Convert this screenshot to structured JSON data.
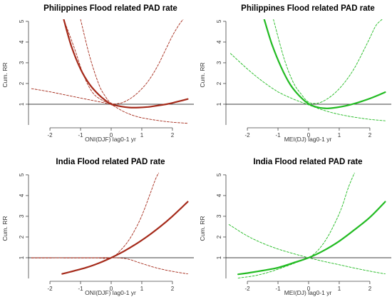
{
  "chart_data": [
    {
      "type": "line",
      "title": "Philippines Flood related PAD rate",
      "xlabel": "ONI(DJF) lag0-1 yr",
      "ylabel": "Cum. RR",
      "xlim": [
        -2.7,
        2.7
      ],
      "ylim": [
        0,
        5.1
      ],
      "x_ticks": [
        -2,
        -1,
        0,
        1,
        2
      ],
      "y_ticks": [
        1,
        2,
        3,
        4,
        5
      ],
      "reference_line": 1,
      "color": "#a52a1a",
      "series": [
        {
          "role": "estimate",
          "style": "solid",
          "x": [
            -1.55,
            -1.3,
            -1.0,
            -0.7,
            -0.4,
            -0.2,
            0,
            0.3,
            0.6,
            0.9,
            1.2,
            1.5,
            1.8,
            2.1,
            2.5
          ],
          "y": [
            5.1,
            3.8,
            2.7,
            1.95,
            1.45,
            1.2,
            1.0,
            0.9,
            0.84,
            0.84,
            0.87,
            0.93,
            1.0,
            1.1,
            1.25
          ]
        },
        {
          "role": "ci-upper",
          "style": "dashed",
          "x": [
            -1.0,
            -0.7,
            -0.4,
            -0.2,
            0,
            0.3,
            0.6,
            0.9,
            1.2,
            1.5,
            1.8,
            2.0,
            2.2,
            2.35
          ],
          "y": [
            5.1,
            3.3,
            1.95,
            1.4,
            1.05,
            1.05,
            1.25,
            1.6,
            2.1,
            2.8,
            3.7,
            4.3,
            4.8,
            5.1
          ]
        },
        {
          "role": "ci-lower",
          "style": "dashed",
          "x": [
            -1.55,
            -1.2,
            -0.9,
            -0.6,
            -0.3,
            0,
            0.4,
            0.8,
            1.2,
            1.6,
            2.0,
            2.5
          ],
          "y": [
            5.1,
            3.7,
            2.4,
            1.55,
            1.2,
            0.99,
            0.65,
            0.42,
            0.29,
            0.2,
            0.13,
            0.08
          ]
        },
        {
          "role": "ci-lower-left",
          "style": "dashed",
          "x": [
            -2.6,
            -2.0,
            -1.5,
            -1.0,
            -0.5,
            0
          ],
          "y": [
            1.75,
            1.6,
            1.45,
            1.3,
            1.15,
            1.0
          ]
        }
      ]
    },
    {
      "type": "line",
      "title": "Philippines Flood related PAD rate",
      "xlabel": "MEI(DJ) lag0-1 yr",
      "ylabel": "Cum. RR",
      "xlim": [
        -2.7,
        2.7
      ],
      "ylim": [
        0,
        5.1
      ],
      "x_ticks": [
        -2,
        -1,
        0,
        1,
        2
      ],
      "y_ticks": [
        1,
        2,
        3,
        4,
        5
      ],
      "reference_line": 1,
      "color": "#22bb22",
      "series": [
        {
          "role": "estimate",
          "style": "solid",
          "x": [
            -1.45,
            -1.2,
            -0.9,
            -0.6,
            -0.3,
            0,
            0.3,
            0.6,
            0.9,
            1.2,
            1.5,
            1.8,
            2.1,
            2.5
          ],
          "y": [
            5.1,
            3.9,
            2.8,
            1.95,
            1.4,
            1.02,
            0.85,
            0.8,
            0.84,
            0.92,
            1.03,
            1.17,
            1.33,
            1.58
          ]
        },
        {
          "role": "ci-upper",
          "style": "dashed",
          "x": [
            -1.15,
            -0.8,
            -0.5,
            -0.25,
            0,
            0.3,
            0.6,
            0.9,
            1.2,
            1.5,
            1.8,
            2.0,
            2.2,
            2.4
          ],
          "y": [
            5.1,
            3.2,
            2.05,
            1.5,
            1.1,
            1.05,
            1.25,
            1.6,
            2.1,
            2.75,
            3.6,
            4.2,
            4.8,
            5.1
          ]
        },
        {
          "role": "ci-lower",
          "style": "dashed",
          "x": [
            -2.55,
            -2.0,
            -1.5,
            -1.0,
            -0.5,
            0,
            0.4,
            0.8,
            1.2,
            1.6,
            2.0,
            2.5
          ],
          "y": [
            3.45,
            2.7,
            2.1,
            1.6,
            1.25,
            0.97,
            0.75,
            0.58,
            0.45,
            0.35,
            0.27,
            0.2
          ]
        }
      ]
    },
    {
      "type": "line",
      "title": "India Flood related PAD rate",
      "xlabel": "ONI(DJF) lag0-1 yr",
      "ylabel": "Cum. RR",
      "xlim": [
        -2.7,
        2.7
      ],
      "ylim": [
        0,
        5.1
      ],
      "x_ticks": [
        -2,
        -1,
        0,
        1,
        2
      ],
      "y_ticks": [
        1,
        2,
        3,
        4,
        5
      ],
      "reference_line": 1,
      "color": "#a52a1a",
      "series": [
        {
          "role": "estimate",
          "style": "solid",
          "x": [
            -1.6,
            -1.2,
            -0.8,
            -0.4,
            0,
            0.4,
            0.8,
            1.2,
            1.6,
            2.0,
            2.5
          ],
          "y": [
            0.22,
            0.37,
            0.53,
            0.74,
            1.0,
            1.3,
            1.65,
            2.05,
            2.5,
            3.0,
            3.7
          ]
        },
        {
          "role": "ci-upper",
          "style": "dashed",
          "x": [
            -2.6,
            -2.0,
            -1.5,
            -1.0,
            -0.5,
            0,
            0.3,
            0.6,
            0.9,
            1.1,
            1.3,
            1.45,
            1.55
          ],
          "y": [
            1.0,
            1.0,
            0.99,
            0.99,
            0.99,
            1.0,
            1.35,
            1.9,
            2.7,
            3.4,
            4.2,
            4.8,
            5.1
          ]
        },
        {
          "role": "ci-lower",
          "style": "dashed",
          "x": [
            -2.6,
            -2.0,
            -1.5,
            -1.0,
            -0.5,
            0,
            0.5,
            1.0,
            1.5,
            2.0,
            2.5
          ],
          "y": [
            0.99,
            0.99,
            1.0,
            1.0,
            1.0,
            1.0,
            0.95,
            0.72,
            0.5,
            0.34,
            0.22
          ]
        }
      ]
    },
    {
      "type": "line",
      "title": "India Flood related PAD rate",
      "xlabel": "MEI(DJ) lag0-1 yr",
      "ylabel": "Cum. RR",
      "xlim": [
        -2.7,
        2.7
      ],
      "ylim": [
        0,
        5.1
      ],
      "x_ticks": [
        -2,
        -1,
        0,
        1,
        2
      ],
      "y_ticks": [
        1,
        2,
        3,
        4,
        5
      ],
      "reference_line": 1,
      "color": "#22bb22",
      "series": [
        {
          "role": "estimate",
          "style": "solid",
          "x": [
            -2.3,
            -2.0,
            -1.5,
            -1.0,
            -0.5,
            0,
            0.5,
            1.0,
            1.5,
            2.0,
            2.5
          ],
          "y": [
            0.2,
            0.26,
            0.38,
            0.52,
            0.75,
            1.0,
            1.35,
            1.8,
            2.35,
            2.95,
            3.7
          ]
        },
        {
          "role": "ci-upper",
          "style": "dashed",
          "x": [
            -2.3,
            -1.8,
            -1.3,
            -0.8,
            -0.4,
            0,
            0.3,
            0.6,
            0.9,
            1.1,
            1.3,
            1.5
          ],
          "y": [
            0.02,
            0.12,
            0.3,
            0.55,
            0.77,
            1.0,
            1.35,
            1.95,
            2.8,
            3.5,
            4.4,
            5.1
          ]
        },
        {
          "role": "ci-lower",
          "style": "dashed",
          "x": [
            -2.6,
            -2.0,
            -1.5,
            -1.0,
            -0.5,
            0,
            0.5,
            1.0,
            1.5,
            2.0,
            2.5
          ],
          "y": [
            2.6,
            2.05,
            1.7,
            1.42,
            1.2,
            1.0,
            0.82,
            0.66,
            0.5,
            0.35,
            0.22
          ]
        }
      ]
    }
  ]
}
